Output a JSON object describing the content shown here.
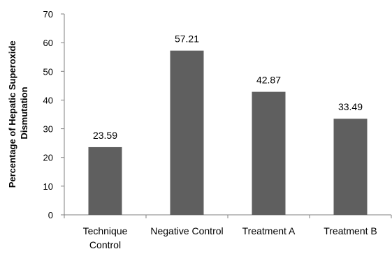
{
  "chart_data": {
    "type": "bar",
    "title": "",
    "xlabel": "",
    "ylabel_lines": [
      "Percentage of Hepatic Superoxide",
      "Dismutation"
    ],
    "categories": [
      [
        "Technique",
        "Control"
      ],
      [
        "Negative Control"
      ],
      [
        "Treatment A"
      ],
      [
        "Treatment B"
      ]
    ],
    "values": [
      23.59,
      57.21,
      42.87,
      33.49
    ],
    "value_labels": [
      "23.59",
      "57.21",
      "42.87",
      "33.49"
    ],
    "ylim": [
      0,
      70
    ],
    "yticks": [
      0,
      10,
      20,
      30,
      40,
      50,
      60,
      70
    ],
    "grid": false,
    "legend": "none",
    "bar_color": "#5f5f5f",
    "axis_color": "#808080"
  }
}
